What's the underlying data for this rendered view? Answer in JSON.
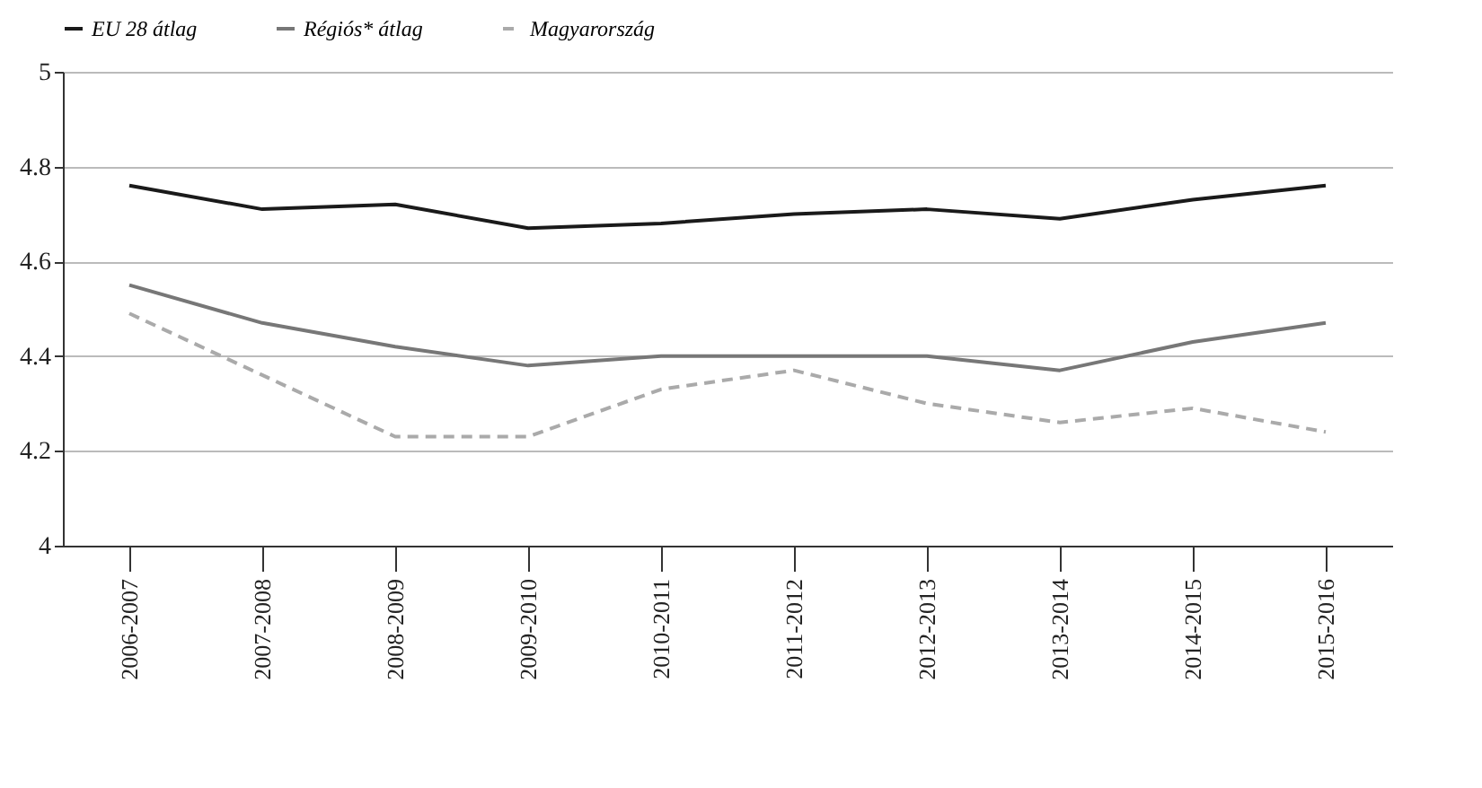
{
  "chart_data": {
    "type": "line",
    "categories": [
      "2006-2007",
      "2007-2008",
      "2008-2009",
      "2009-2010",
      "2010-2011",
      "2011-2012",
      "2012-2013",
      "2013-2014",
      "2014-2015",
      "2015-2016"
    ],
    "series": [
      {
        "name": "EU 28 átlag",
        "color": "#1a1a1a",
        "line_style": "solid",
        "values": [
          4.76,
          4.71,
          4.72,
          4.67,
          4.68,
          4.7,
          4.71,
          4.69,
          4.73,
          4.76
        ]
      },
      {
        "name": "Régiós* átlag",
        "color": "#777777",
        "line_style": "solid",
        "values": [
          4.55,
          4.47,
          4.42,
          4.38,
          4.4,
          4.4,
          4.4,
          4.37,
          4.43,
          4.47
        ]
      },
      {
        "name": "Magyarország",
        "color": "#aaaaaa",
        "line_style": "dashed",
        "values": [
          4.49,
          4.36,
          4.23,
          4.23,
          4.33,
          4.37,
          4.3,
          4.26,
          4.29,
          4.24
        ]
      }
    ],
    "ylim": [
      4,
      5
    ],
    "yticks": [
      4,
      4.2,
      4.4,
      4.6,
      4.8,
      5
    ],
    "grid": "y",
    "legend": "top left",
    "marker": "none"
  }
}
